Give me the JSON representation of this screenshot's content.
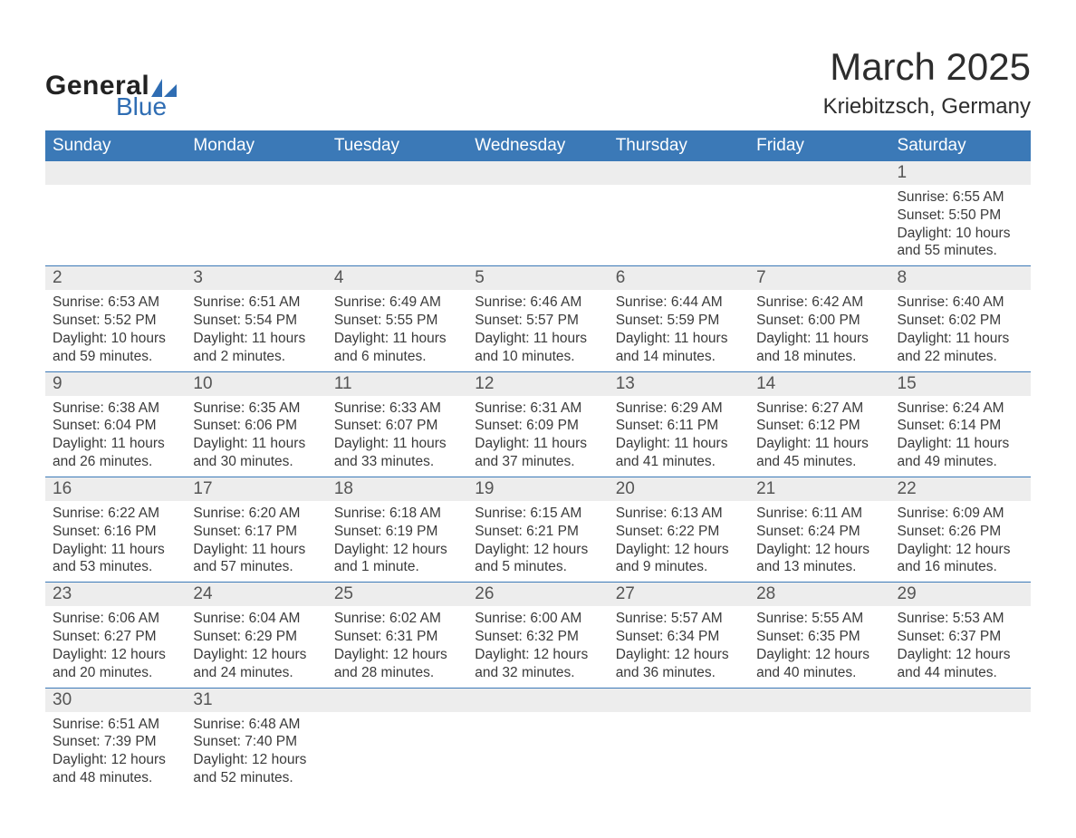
{
  "brand": {
    "word1": "General",
    "word2": "Blue",
    "accent": "#2f6db3"
  },
  "title": "March 2025",
  "location": "Kriebitzsch, Germany",
  "colors": {
    "header_bg": "#3b79b7",
    "header_text": "#ffffff",
    "daynum_bg": "#ededed",
    "row_border": "#3b79b7",
    "text": "#3a3a3a"
  },
  "day_names": [
    "Sunday",
    "Monday",
    "Tuesday",
    "Wednesday",
    "Thursday",
    "Friday",
    "Saturday"
  ],
  "weeks": [
    [
      {
        "n": "",
        "sr": "",
        "ss": "",
        "dl": ""
      },
      {
        "n": "",
        "sr": "",
        "ss": "",
        "dl": ""
      },
      {
        "n": "",
        "sr": "",
        "ss": "",
        "dl": ""
      },
      {
        "n": "",
        "sr": "",
        "ss": "",
        "dl": ""
      },
      {
        "n": "",
        "sr": "",
        "ss": "",
        "dl": ""
      },
      {
        "n": "",
        "sr": "",
        "ss": "",
        "dl": ""
      },
      {
        "n": "1",
        "sr": "Sunrise: 6:55 AM",
        "ss": "Sunset: 5:50 PM",
        "dl": "Daylight: 10 hours and 55 minutes."
      }
    ],
    [
      {
        "n": "2",
        "sr": "Sunrise: 6:53 AM",
        "ss": "Sunset: 5:52 PM",
        "dl": "Daylight: 10 hours and 59 minutes."
      },
      {
        "n": "3",
        "sr": "Sunrise: 6:51 AM",
        "ss": "Sunset: 5:54 PM",
        "dl": "Daylight: 11 hours and 2 minutes."
      },
      {
        "n": "4",
        "sr": "Sunrise: 6:49 AM",
        "ss": "Sunset: 5:55 PM",
        "dl": "Daylight: 11 hours and 6 minutes."
      },
      {
        "n": "5",
        "sr": "Sunrise: 6:46 AM",
        "ss": "Sunset: 5:57 PM",
        "dl": "Daylight: 11 hours and 10 minutes."
      },
      {
        "n": "6",
        "sr": "Sunrise: 6:44 AM",
        "ss": "Sunset: 5:59 PM",
        "dl": "Daylight: 11 hours and 14 minutes."
      },
      {
        "n": "7",
        "sr": "Sunrise: 6:42 AM",
        "ss": "Sunset: 6:00 PM",
        "dl": "Daylight: 11 hours and 18 minutes."
      },
      {
        "n": "8",
        "sr": "Sunrise: 6:40 AM",
        "ss": "Sunset: 6:02 PM",
        "dl": "Daylight: 11 hours and 22 minutes."
      }
    ],
    [
      {
        "n": "9",
        "sr": "Sunrise: 6:38 AM",
        "ss": "Sunset: 6:04 PM",
        "dl": "Daylight: 11 hours and 26 minutes."
      },
      {
        "n": "10",
        "sr": "Sunrise: 6:35 AM",
        "ss": "Sunset: 6:06 PM",
        "dl": "Daylight: 11 hours and 30 minutes."
      },
      {
        "n": "11",
        "sr": "Sunrise: 6:33 AM",
        "ss": "Sunset: 6:07 PM",
        "dl": "Daylight: 11 hours and 33 minutes."
      },
      {
        "n": "12",
        "sr": "Sunrise: 6:31 AM",
        "ss": "Sunset: 6:09 PM",
        "dl": "Daylight: 11 hours and 37 minutes."
      },
      {
        "n": "13",
        "sr": "Sunrise: 6:29 AM",
        "ss": "Sunset: 6:11 PM",
        "dl": "Daylight: 11 hours and 41 minutes."
      },
      {
        "n": "14",
        "sr": "Sunrise: 6:27 AM",
        "ss": "Sunset: 6:12 PM",
        "dl": "Daylight: 11 hours and 45 minutes."
      },
      {
        "n": "15",
        "sr": "Sunrise: 6:24 AM",
        "ss": "Sunset: 6:14 PM",
        "dl": "Daylight: 11 hours and 49 minutes."
      }
    ],
    [
      {
        "n": "16",
        "sr": "Sunrise: 6:22 AM",
        "ss": "Sunset: 6:16 PM",
        "dl": "Daylight: 11 hours and 53 minutes."
      },
      {
        "n": "17",
        "sr": "Sunrise: 6:20 AM",
        "ss": "Sunset: 6:17 PM",
        "dl": "Daylight: 11 hours and 57 minutes."
      },
      {
        "n": "18",
        "sr": "Sunrise: 6:18 AM",
        "ss": "Sunset: 6:19 PM",
        "dl": "Daylight: 12 hours and 1 minute."
      },
      {
        "n": "19",
        "sr": "Sunrise: 6:15 AM",
        "ss": "Sunset: 6:21 PM",
        "dl": "Daylight: 12 hours and 5 minutes."
      },
      {
        "n": "20",
        "sr": "Sunrise: 6:13 AM",
        "ss": "Sunset: 6:22 PM",
        "dl": "Daylight: 12 hours and 9 minutes."
      },
      {
        "n": "21",
        "sr": "Sunrise: 6:11 AM",
        "ss": "Sunset: 6:24 PM",
        "dl": "Daylight: 12 hours and 13 minutes."
      },
      {
        "n": "22",
        "sr": "Sunrise: 6:09 AM",
        "ss": "Sunset: 6:26 PM",
        "dl": "Daylight: 12 hours and 16 minutes."
      }
    ],
    [
      {
        "n": "23",
        "sr": "Sunrise: 6:06 AM",
        "ss": "Sunset: 6:27 PM",
        "dl": "Daylight: 12 hours and 20 minutes."
      },
      {
        "n": "24",
        "sr": "Sunrise: 6:04 AM",
        "ss": "Sunset: 6:29 PM",
        "dl": "Daylight: 12 hours and 24 minutes."
      },
      {
        "n": "25",
        "sr": "Sunrise: 6:02 AM",
        "ss": "Sunset: 6:31 PM",
        "dl": "Daylight: 12 hours and 28 minutes."
      },
      {
        "n": "26",
        "sr": "Sunrise: 6:00 AM",
        "ss": "Sunset: 6:32 PM",
        "dl": "Daylight: 12 hours and 32 minutes."
      },
      {
        "n": "27",
        "sr": "Sunrise: 5:57 AM",
        "ss": "Sunset: 6:34 PM",
        "dl": "Daylight: 12 hours and 36 minutes."
      },
      {
        "n": "28",
        "sr": "Sunrise: 5:55 AM",
        "ss": "Sunset: 6:35 PM",
        "dl": "Daylight: 12 hours and 40 minutes."
      },
      {
        "n": "29",
        "sr": "Sunrise: 5:53 AM",
        "ss": "Sunset: 6:37 PM",
        "dl": "Daylight: 12 hours and 44 minutes."
      }
    ],
    [
      {
        "n": "30",
        "sr": "Sunrise: 6:51 AM",
        "ss": "Sunset: 7:39 PM",
        "dl": "Daylight: 12 hours and 48 minutes."
      },
      {
        "n": "31",
        "sr": "Sunrise: 6:48 AM",
        "ss": "Sunset: 7:40 PM",
        "dl": "Daylight: 12 hours and 52 minutes."
      },
      {
        "n": "",
        "sr": "",
        "ss": "",
        "dl": ""
      },
      {
        "n": "",
        "sr": "",
        "ss": "",
        "dl": ""
      },
      {
        "n": "",
        "sr": "",
        "ss": "",
        "dl": ""
      },
      {
        "n": "",
        "sr": "",
        "ss": "",
        "dl": ""
      },
      {
        "n": "",
        "sr": "",
        "ss": "",
        "dl": ""
      }
    ]
  ]
}
